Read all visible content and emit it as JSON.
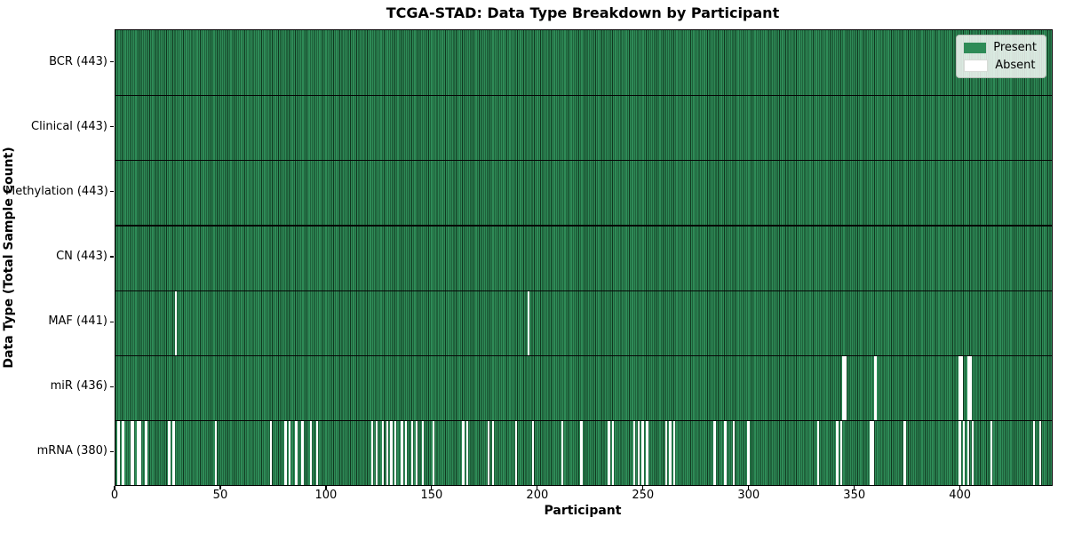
{
  "chart_data": {
    "type": "heatmap",
    "title": "TCGA-STAD: Data Type Breakdown by Participant",
    "xlabel": "Participant",
    "ylabel": "Data Type (Total Sample Count)",
    "n_participants": 443,
    "xlim": [
      0,
      443
    ],
    "x_ticks": [
      0,
      50,
      100,
      150,
      200,
      250,
      300,
      350,
      400
    ],
    "grid": false,
    "legend": {
      "position": "upper right",
      "items": [
        {
          "label": "Present",
          "color": "#2e8b57"
        },
        {
          "label": "Absent",
          "color": "#ffffff"
        }
      ]
    },
    "colors": {
      "present_fill": "#2e8b57",
      "bar_edge": "#10371f",
      "absent_fill": "#ffffff",
      "row_separator": "#000000",
      "spine": "#000000"
    },
    "rows": [
      {
        "data_type": "BCR",
        "label": "BCR (443)",
        "present_count": 443,
        "absent_participants": []
      },
      {
        "data_type": "Clinical",
        "label": "Clinical (443)",
        "present_count": 443,
        "absent_participants": []
      },
      {
        "data_type": "Methylation",
        "label": "Methylation (443)",
        "present_count": 443,
        "absent_participants": []
      },
      {
        "data_type": "CN",
        "label": "CN (443)",
        "present_count": 443,
        "absent_participants": []
      },
      {
        "data_type": "MAF",
        "label": "MAF (441)",
        "present_count": 441,
        "absent_participants": [
          28,
          195
        ]
      },
      {
        "data_type": "miR",
        "label": "miR (436)",
        "present_count": 436,
        "absent_participants": [
          344,
          345,
          359,
          399,
          400,
          403,
          404
        ]
      },
      {
        "data_type": "mRNA",
        "label": "mRNA (380)",
        "present_count": 380,
        "absent_participants": [
          1,
          3,
          7,
          8,
          10,
          11,
          14,
          25,
          27,
          47,
          73,
          80,
          82,
          85,
          88,
          92,
          95,
          121,
          123,
          126,
          128,
          130,
          132,
          135,
          137,
          140,
          142,
          145,
          150,
          164,
          166,
          176,
          178,
          189,
          197,
          211,
          220,
          233,
          235,
          245,
          247,
          249,
          251,
          260,
          262,
          264,
          283,
          288,
          292,
          299,
          332,
          341,
          343,
          357,
          358,
          373,
          399,
          401,
          403,
          405,
          414,
          434,
          437
        ]
      }
    ]
  }
}
